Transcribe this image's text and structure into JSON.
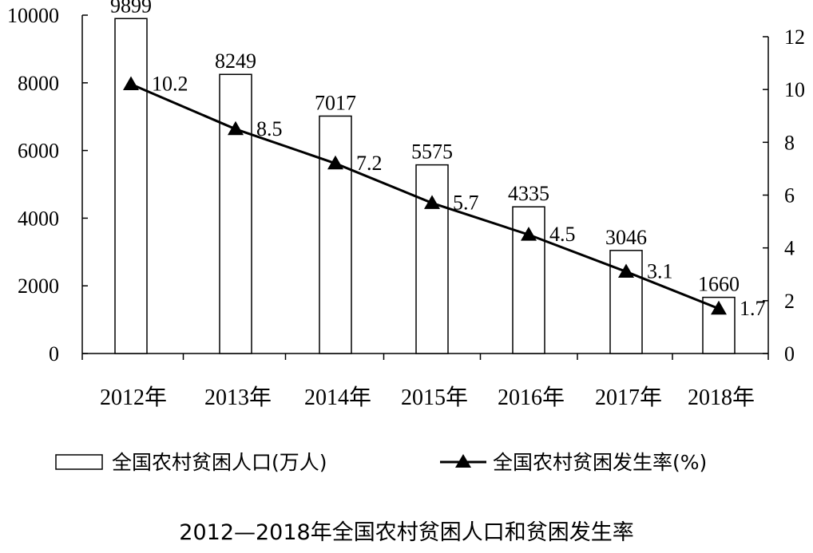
{
  "chart_data": {
    "type": "bar",
    "title": "2012—2018年全国农村贫困人口和贫困发生率",
    "categories": [
      "2012年",
      "2013年",
      "2014年",
      "2015年",
      "2016年",
      "2017年",
      "2018年"
    ],
    "series": [
      {
        "name": "全国农村贫困人口(万人)",
        "type": "bar",
        "axis": "left",
        "values": [
          9899,
          8249,
          7017,
          5575,
          4335,
          3046,
          1660
        ],
        "labels": [
          "9899",
          "8249",
          "7017",
          "5575",
          "4335",
          "3046",
          "1660"
        ]
      },
      {
        "name": "全国农村贫困发生率(%)",
        "type": "line",
        "marker": "triangle",
        "axis": "right",
        "values": [
          10.2,
          8.5,
          7.2,
          5.7,
          4.5,
          3.1,
          1.7
        ],
        "labels": [
          "10.2",
          "8.5",
          "7.2",
          "5.7",
          "4.5",
          "3.1",
          "1.7"
        ]
      }
    ],
    "y_left": {
      "ylim": [
        0,
        10000
      ],
      "ticks": [
        0,
        2000,
        4000,
        6000,
        8000,
        10000
      ],
      "tick_labels": [
        "0",
        "2000",
        "4000",
        "6000",
        "8000",
        "10000"
      ]
    },
    "y_right": {
      "ylim": [
        0,
        12
      ],
      "ticks": [
        0,
        2,
        4,
        6,
        8,
        10,
        12
      ],
      "tick_labels": [
        "0",
        "2",
        "4",
        "6",
        "8",
        "10",
        "12"
      ]
    },
    "grid": false,
    "legend_position": "bottom",
    "colors": {
      "bar_fill": "#ffffff",
      "bar_stroke": "#000000",
      "line": "#000000",
      "text": "#000000"
    }
  }
}
